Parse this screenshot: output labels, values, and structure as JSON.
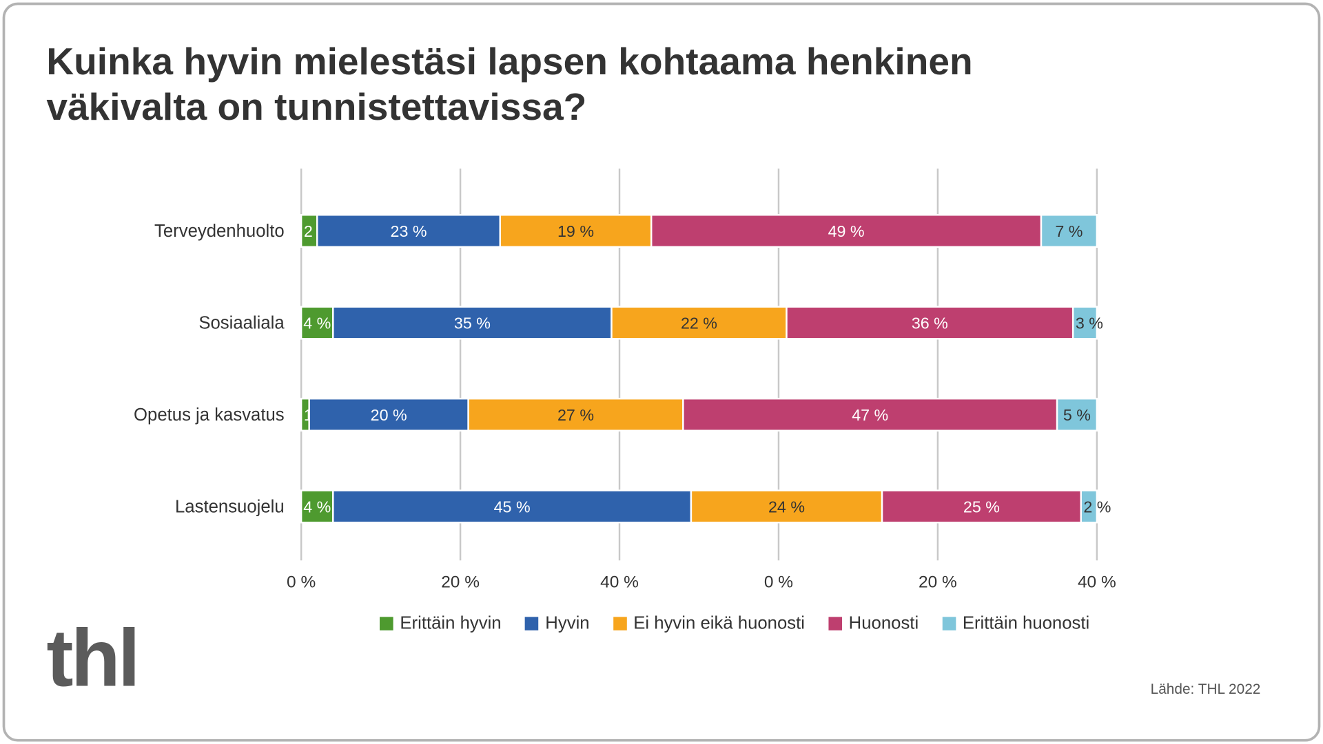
{
  "title": "Kuinka hyvin mielestäsi lapsen kohtaama henkinen väkivalta on tunnistettavissa?",
  "logo_text": "thl",
  "source": "Lähde: THL 2022",
  "chart_data": {
    "type": "bar",
    "orientation": "horizontal",
    "stacked": "100%",
    "categories": [
      "Terveydenhuolto",
      "Sosiaaliala",
      "Opetus ja kasvatus",
      "Lastensuojelu"
    ],
    "series": [
      {
        "name": "Erittäin hyvin",
        "color": "#4e9a2f",
        "label_color": "#ffffff",
        "values": [
          2,
          4,
          1,
          4
        ]
      },
      {
        "name": "Hyvin",
        "color": "#2f62ac",
        "label_color": "#ffffff",
        "values": [
          23,
          35,
          20,
          45
        ]
      },
      {
        "name": "Ei hyvin eikä huonosti",
        "color": "#f7a51d",
        "label_color": "#333333",
        "values": [
          19,
          22,
          27,
          24
        ]
      },
      {
        "name": "Huonosti",
        "color": "#be3f6f",
        "label_color": "#ffffff",
        "values": [
          49,
          36,
          47,
          25
        ]
      },
      {
        "name": "Erittäin huonosti",
        "color": "#7fc6db",
        "label_color": "#333333",
        "values": [
          7,
          3,
          5,
          2
        ]
      }
    ],
    "value_suffix": " %",
    "xlim": [
      0,
      100
    ],
    "tick_labels": [
      "0 %",
      "20 %",
      "40 %",
      "0 %",
      "20 %",
      "40 %"
    ],
    "grid": true,
    "legend_position": "bottom"
  }
}
